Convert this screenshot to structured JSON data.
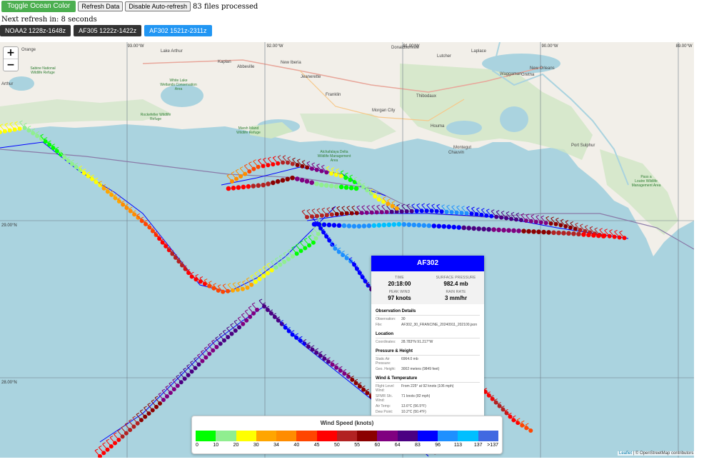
{
  "toolbar": {
    "toggle_label": "Toggle Ocean Color",
    "refresh_label": "Refresh Data",
    "autorefresh_label": "Disable Auto-refresh",
    "files_status": "83 files processed",
    "next_refresh": "Next refresh in: 8 seconds"
  },
  "flights": [
    {
      "label": "NOAA2 1228z-1648z",
      "active": false
    },
    {
      "label": "AF305 1222z-1422z",
      "active": false
    },
    {
      "label": "AF302 1521z-2311z",
      "active": true
    }
  ],
  "map": {
    "zoom_in": "+",
    "zoom_out": "−",
    "lon_labels": [
      "93.00°W",
      "92.00°W",
      "91.00°W",
      "90.00°W",
      "89.00°W"
    ],
    "lat_labels": [
      "29.00°N",
      "28.00°N"
    ],
    "places": [
      "Lake Arthur",
      "Kaplan",
      "Abbeville",
      "New Iberia",
      "Jeanerette",
      "Franklin",
      "Morgan City",
      "Thibodaux",
      "Houma",
      "Montegut",
      "Chauvin",
      "New Orleans",
      "Lutcher",
      "Laplace",
      "Gretna",
      "Waggaman",
      "Port Sulphur",
      "Donaldsonville",
      "Orange",
      "Arthur"
    ],
    "reserves": [
      "Sabine National Wildlife Refuge",
      "White Lake Wetlands Conservation Area",
      "Rockefeller Wildlife Refuge",
      "Marsh Island Wildlife Refuge",
      "Atchafalaya Delta Wildlife Management Area",
      "Pass a Loutre Wildlife Management Area"
    ],
    "ocean_color": "#aad3df",
    "land_color": "#f2efe9",
    "wetland_color": "#cfe6c4"
  },
  "popup": {
    "title": "AF302",
    "header_color": "#0000ff",
    "time_label": "TIME",
    "time": "20:18:00",
    "pressure_label": "SURFACE PRESSURE",
    "pressure": "982.4 mb",
    "peak_wind_label": "PEAK WIND",
    "peak_wind": "97 knots",
    "rain_label": "RAIN RATE",
    "rain": "3 mm/hr",
    "obs_title": "Observation Details",
    "obs_label": "Observation:",
    "obs_value": "30",
    "file_label": "File:",
    "file_value": "AF302_30_FRANCINE_20240911_202100.json",
    "loc_title": "Location",
    "coord_label": "Coordinates:",
    "coord_value": "28.783°N 91.217°W",
    "ph_title": "Pressure & Height",
    "sap_label": "Static Air Pressure:",
    "sap_value": "6964.0 mb",
    "geo_label": "Geo. Height:",
    "geo_value": "3002 meters (9849 feet)",
    "wt_title": "Wind & Temperature",
    "flw_label": "Flight Level Wind:",
    "flw_value": "From 225° at 92 knots (106 mph)",
    "sfmr_label": "SFMR Sfc. Wind:",
    "sfmr_value": "71 knots (82 mph)",
    "air_label": "Air Temp:",
    "air_value": "13.6°C (56.5°F)",
    "dew_label": "Dew Point:",
    "dew_value": "10.2°C (50.4°F)"
  },
  "legend": {
    "title": "Wind Speed (knots)",
    "stops": [
      {
        "label": "0",
        "color": "#00ff00"
      },
      {
        "label": "10",
        "color": "#90ee90"
      },
      {
        "label": "20",
        "color": "#ffff00"
      },
      {
        "label": "30",
        "color": "#ffa500"
      },
      {
        "label": "34",
        "color": "#ff8c00"
      },
      {
        "label": "40",
        "color": "#ff4500"
      },
      {
        "label": "45",
        "color": "#ff0000"
      },
      {
        "label": "50",
        "color": "#b22222"
      },
      {
        "label": "55",
        "color": "#8b0000"
      },
      {
        "label": "60",
        "color": "#800080"
      },
      {
        "label": "64",
        "color": "#4b0082"
      },
      {
        "label": "83",
        "color": "#0000ff"
      },
      {
        "label": "96",
        "color": "#1e90ff"
      },
      {
        "label": "113",
        "color": "#00bfff"
      },
      {
        "label": "137",
        "color": "#4169e1"
      },
      {
        "label": ">137",
        "color": ""
      }
    ]
  },
  "attribution": {
    "leaflet": "Leaflet",
    "osm": "| © OpenStreetMap contributors"
  }
}
